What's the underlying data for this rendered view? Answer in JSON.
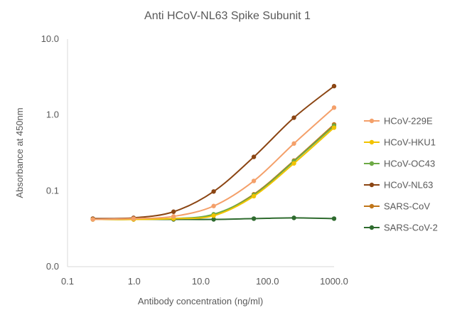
{
  "chart_data": {
    "type": "line",
    "title": "Anti HCoV-NL63 Spike Subunit 1",
    "xlabel": "Antibody concentration (ng/ml)",
    "ylabel": "Absorbance at 450nm",
    "x_scale": "log",
    "y_scale": "log",
    "xlim": [
      0.1,
      1000
    ],
    "ylim": [
      0.01,
      10
    ],
    "x_tick_values": [
      0.1,
      1,
      10,
      100,
      1000
    ],
    "x_tick_labels": [
      "0.1",
      "1.0",
      "10.0",
      "100.0",
      "1000.0"
    ],
    "y_tick_values": [
      0.01,
      0.1,
      1,
      10
    ],
    "y_tick_labels": [
      "0.0",
      "0.1",
      "1.0",
      "10.0"
    ],
    "grid": false,
    "legend_position": "right",
    "x": [
      0.24,
      0.98,
      3.9,
      15.6,
      62.5,
      250,
      1000
    ],
    "series": [
      {
        "name": "HCoV-229E",
        "color": "#F4A06A",
        "values": [
          0.042,
          0.043,
          0.046,
          0.063,
          0.135,
          0.42,
          1.25
        ]
      },
      {
        "name": "HCoV-HKU1",
        "color": "#F2C300",
        "values": [
          0.042,
          0.042,
          0.043,
          0.047,
          0.085,
          0.23,
          0.68
        ]
      },
      {
        "name": "HCoV-OC43",
        "color": "#6DAA45",
        "values": [
          0.042,
          0.042,
          0.043,
          0.049,
          0.088,
          0.245,
          0.72
        ]
      },
      {
        "name": "HCoV-NL63",
        "color": "#8B4513",
        "values": [
          0.043,
          0.044,
          0.053,
          0.098,
          0.28,
          0.92,
          2.4
        ]
      },
      {
        "name": "SARS-CoV",
        "color": "#C0761A",
        "values": [
          0.042,
          0.042,
          0.043,
          0.048,
          0.09,
          0.25,
          0.75
        ]
      },
      {
        "name": "SARS-CoV-2",
        "color": "#2E6B2E",
        "values": [
          0.042,
          0.042,
          0.042,
          0.042,
          0.043,
          0.044,
          0.043
        ]
      }
    ]
  }
}
